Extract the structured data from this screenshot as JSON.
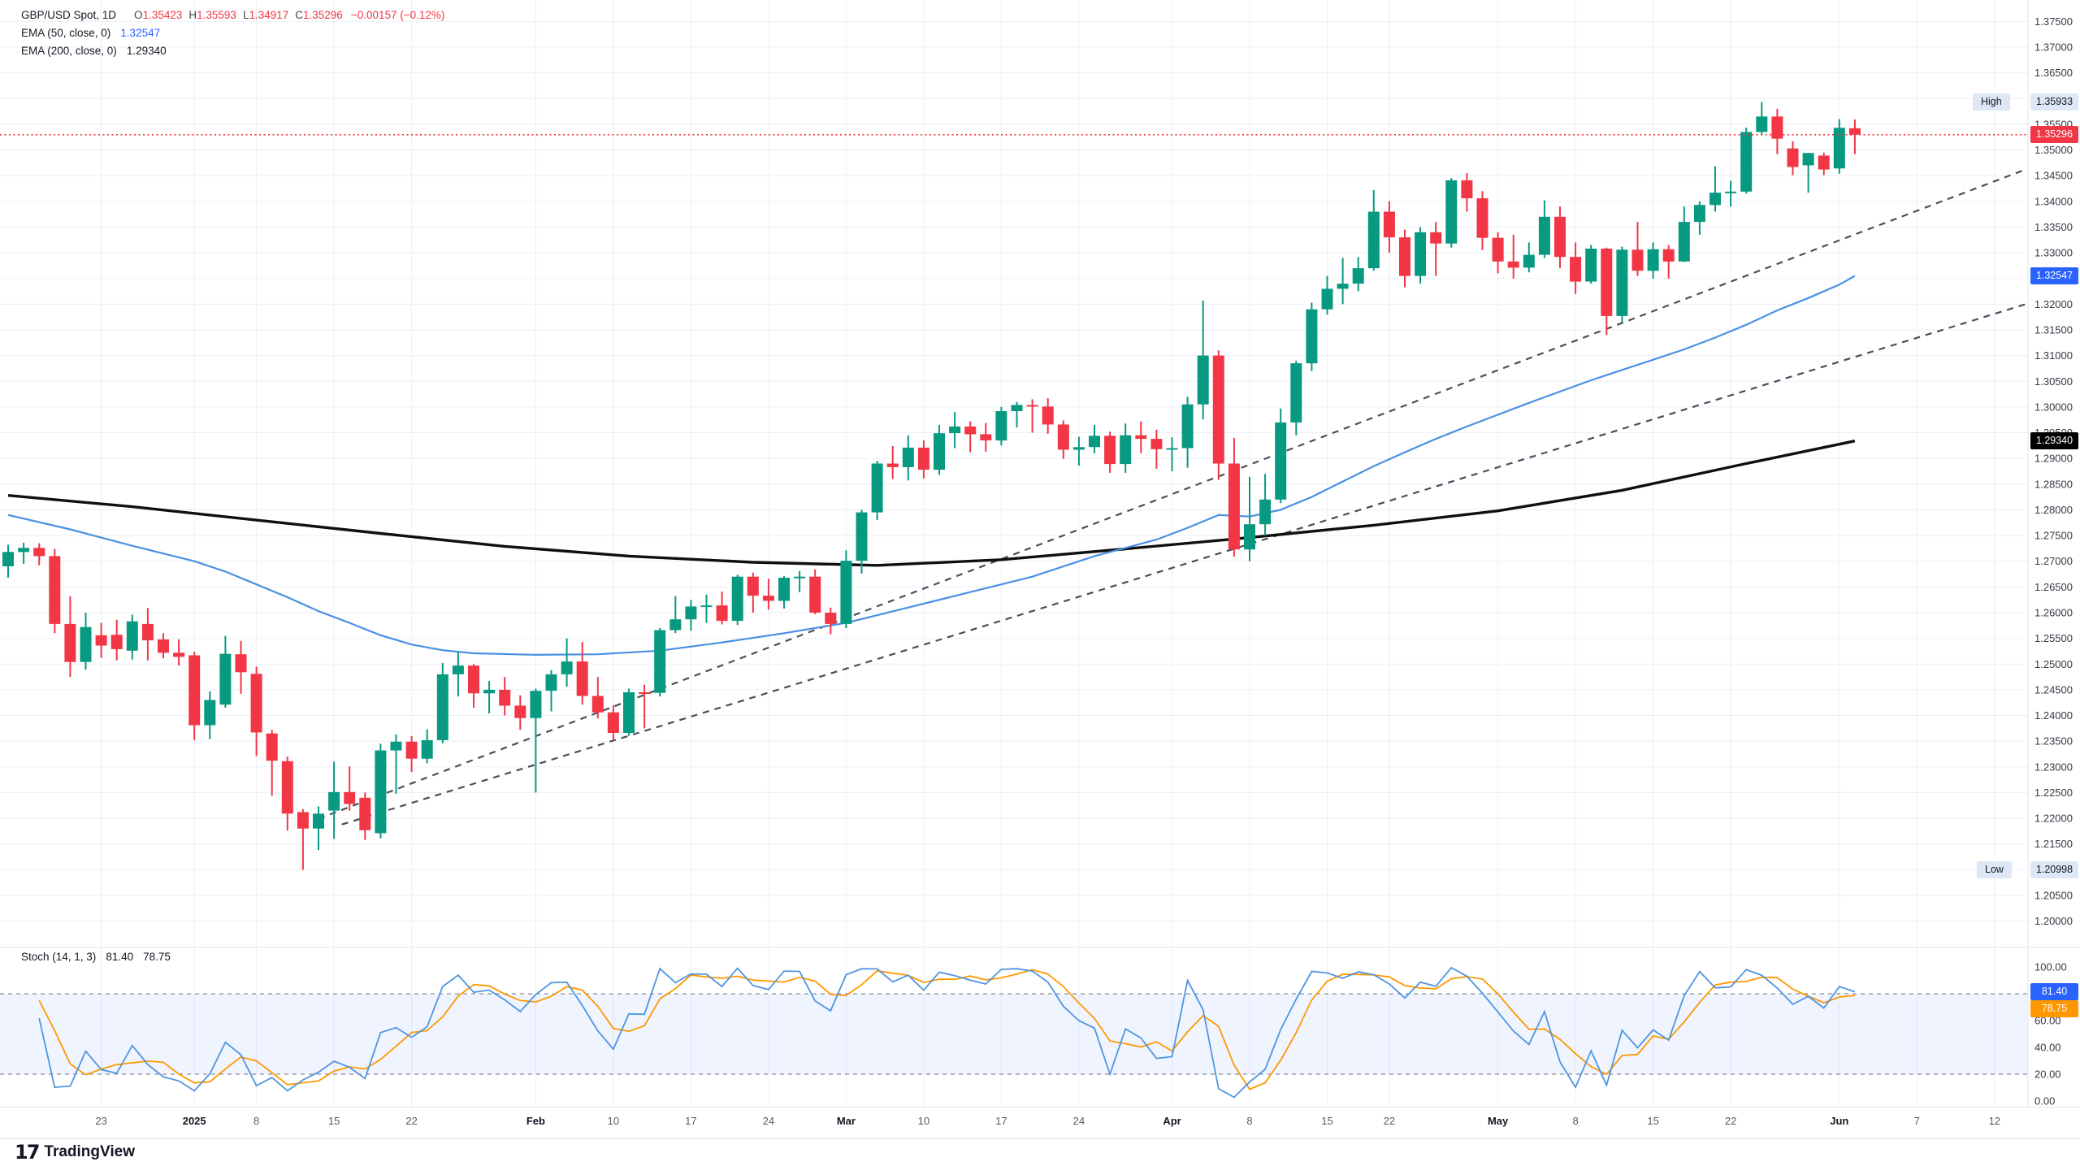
{
  "header": {
    "symbol": "GBP/USD Spot, 1D",
    "o_label": "O",
    "o": "1.35423",
    "h_label": "H",
    "h": "1.35593",
    "l_label": "L",
    "l": "1.34917",
    "c_label": "C",
    "c": "1.35296",
    "change": "−0.00157 (−0.12%)"
  },
  "ema50_row": {
    "label": "EMA (50, close, 0)",
    "value": "1.32547"
  },
  "ema200_row": {
    "label": "EMA (200, close, 0)",
    "value": "1.29340"
  },
  "stoch_row": {
    "label": "Stoch (14, 1, 3)",
    "k": "81.40",
    "d": "78.75"
  },
  "badges": {
    "high_label": "High",
    "high": "1.35933",
    "low_label": "Low",
    "low": "1.20998",
    "last": "1.35296",
    "ema50": "1.32547",
    "ema200": "1.29340",
    "stoch_k": "81.40",
    "stoch_d": "78.75"
  },
  "watermark": {
    "logo": "17",
    "brand": "TradingView"
  },
  "colors": {
    "up": "#089981",
    "down": "#f23645",
    "ema50_line": "#4a90e2",
    "ema200_line": "#101010",
    "stoch_k": "#4f95e0",
    "stoch_d": "#ff9800",
    "grid": "#eceff7",
    "divider": "#e0e3eb",
    "axis_text": "#363a45",
    "trendline": "#4a4e59",
    "last_price_line": "#f23645",
    "stoch_band": "#2962ff"
  },
  "chart_data": {
    "type": "candlestick",
    "title": "GBP/USD Spot, 1D",
    "last_price": 1.35296,
    "high_marker": 1.35933,
    "low_marker": 1.20998,
    "y_axis": {
      "min": 1.2,
      "max": 1.375,
      "step": 0.005
    },
    "stoch_axis": {
      "min": 0,
      "max": 100,
      "ticks": [
        100,
        60,
        40,
        20,
        0
      ],
      "band": [
        80,
        20
      ],
      "k_last": 81.4,
      "d_last": 78.75
    },
    "time_labels": [
      {
        "text": "23",
        "bar": 6
      },
      {
        "text": "2025",
        "bar": 12,
        "major": true
      },
      {
        "text": "8",
        "bar": 16
      },
      {
        "text": "15",
        "bar": 21
      },
      {
        "text": "22",
        "bar": 26
      },
      {
        "text": "Feb",
        "bar": 34,
        "major": true
      },
      {
        "text": "10",
        "bar": 39
      },
      {
        "text": "17",
        "bar": 44
      },
      {
        "text": "24",
        "bar": 49
      },
      {
        "text": "Mar",
        "bar": 54,
        "major": true
      },
      {
        "text": "10",
        "bar": 59
      },
      {
        "text": "17",
        "bar": 64
      },
      {
        "text": "24",
        "bar": 69
      },
      {
        "text": "Apr",
        "bar": 75,
        "major": true
      },
      {
        "text": "8",
        "bar": 80
      },
      {
        "text": "15",
        "bar": 85
      },
      {
        "text": "22",
        "bar": 89
      },
      {
        "text": "May",
        "bar": 96,
        "major": true
      },
      {
        "text": "8",
        "bar": 101
      },
      {
        "text": "15",
        "bar": 106
      },
      {
        "text": "22",
        "bar": 111
      },
      {
        "text": "Jun",
        "bar": 118,
        "major": true
      },
      {
        "text": "7",
        "bar": 123
      },
      {
        "text": "12",
        "bar": 128
      }
    ],
    "candles": [
      [
        1.269,
        1.2732,
        1.2668,
        1.2718
      ],
      [
        1.2718,
        1.2736,
        1.2695,
        1.2726
      ],
      [
        1.2726,
        1.2735,
        1.2692,
        1.271
      ],
      [
        1.271,
        1.2724,
        1.256,
        1.2578
      ],
      [
        1.2578,
        1.2632,
        1.2475,
        1.2504
      ],
      [
        1.2504,
        1.26,
        1.2489,
        1.2572
      ],
      [
        1.2556,
        1.258,
        1.2512,
        1.2536
      ],
      [
        1.2557,
        1.2586,
        1.2507,
        1.2529
      ],
      [
        1.2526,
        1.2596,
        1.2509,
        1.2583
      ],
      [
        1.2578,
        1.2609,
        1.2507,
        1.2546
      ],
      [
        1.2548,
        1.256,
        1.2511,
        1.2522
      ],
      [
        1.2522,
        1.2548,
        1.2497,
        1.2514
      ],
      [
        1.2517,
        1.2524,
        1.2352,
        1.2381
      ],
      [
        1.2381,
        1.2447,
        1.2354,
        1.243
      ],
      [
        1.2421,
        1.2555,
        1.2415,
        1.252
      ],
      [
        1.2519,
        1.2545,
        1.2442,
        1.2484
      ],
      [
        1.2481,
        1.2495,
        1.2321,
        1.2367
      ],
      [
        1.2365,
        1.2372,
        1.2244,
        1.2312
      ],
      [
        1.2311,
        1.232,
        1.2176,
        1.2209
      ],
      [
        1.2212,
        1.2218,
        1.20998,
        1.218
      ],
      [
        1.218,
        1.2223,
        1.2138,
        1.2209
      ],
      [
        1.2215,
        1.231,
        1.216,
        1.2251
      ],
      [
        1.2251,
        1.2301,
        1.2215,
        1.2228
      ],
      [
        1.224,
        1.225,
        1.2158,
        1.2177
      ],
      [
        1.2171,
        1.2345,
        1.2161,
        1.2332
      ],
      [
        1.2332,
        1.2363,
        1.2248,
        1.2349
      ],
      [
        1.2349,
        1.236,
        1.229,
        1.2316
      ],
      [
        1.2316,
        1.2373,
        1.2307,
        1.2352
      ],
      [
        1.2352,
        1.2502,
        1.2346,
        1.248
      ],
      [
        1.248,
        1.2523,
        1.2437,
        1.2497
      ],
      [
        1.2497,
        1.25,
        1.2415,
        1.2443
      ],
      [
        1.2443,
        1.2467,
        1.2404,
        1.245
      ],
      [
        1.245,
        1.2475,
        1.24,
        1.2419
      ],
      [
        1.2419,
        1.2439,
        1.2372,
        1.2395
      ],
      [
        1.2395,
        1.2452,
        1.225,
        1.2448
      ],
      [
        1.2448,
        1.2488,
        1.2408,
        1.248
      ],
      [
        1.248,
        1.255,
        1.2456,
        1.2505
      ],
      [
        1.2505,
        1.2543,
        1.2421,
        1.2438
      ],
      [
        1.2438,
        1.2475,
        1.2394,
        1.2406
      ],
      [
        1.2406,
        1.242,
        1.2353,
        1.2366
      ],
      [
        1.2366,
        1.2452,
        1.236,
        1.2445
      ],
      [
        1.2445,
        1.246,
        1.2375,
        1.2444
      ],
      [
        1.2444,
        1.257,
        1.2437,
        1.2566
      ],
      [
        1.2566,
        1.2632,
        1.256,
        1.2587
      ],
      [
        1.2587,
        1.2625,
        1.2565,
        1.2612
      ],
      [
        1.2612,
        1.2635,
        1.258,
        1.2614
      ],
      [
        1.2614,
        1.2641,
        1.2577,
        1.2584
      ],
      [
        1.2584,
        1.2674,
        1.2576,
        1.267
      ],
      [
        1.267,
        1.2678,
        1.26,
        1.2633
      ],
      [
        1.2633,
        1.2666,
        1.2606,
        1.2623
      ],
      [
        1.2623,
        1.2671,
        1.2608,
        1.2668
      ],
      [
        1.2668,
        1.2681,
        1.264,
        1.267
      ],
      [
        1.267,
        1.2684,
        1.2597,
        1.26
      ],
      [
        1.26,
        1.261,
        1.2558,
        1.2578
      ],
      [
        1.2578,
        1.2721,
        1.257,
        1.2701
      ],
      [
        1.2701,
        1.28,
        1.2676,
        1.2795
      ],
      [
        1.2795,
        1.2895,
        1.278,
        1.289
      ],
      [
        1.289,
        1.2924,
        1.286,
        1.2883
      ],
      [
        1.2883,
        1.2945,
        1.2857,
        1.2921
      ],
      [
        1.2921,
        1.2935,
        1.2861,
        1.2878
      ],
      [
        1.2878,
        1.2965,
        1.2868,
        1.2949
      ],
      [
        1.2949,
        1.299,
        1.292,
        1.2962
      ],
      [
        1.2962,
        1.2972,
        1.2912,
        1.2947
      ],
      [
        1.2947,
        1.2969,
        1.2913,
        1.2935
      ],
      [
        1.2935,
        1.3,
        1.2925,
        1.2992
      ],
      [
        1.2992,
        1.301,
        1.296,
        1.3004
      ],
      [
        1.3004,
        1.3015,
        1.295,
        1.3001
      ],
      [
        1.3001,
        1.3017,
        1.2948,
        1.2966
      ],
      [
        1.2966,
        1.2974,
        1.2899,
        1.2917
      ],
      [
        1.2917,
        1.2942,
        1.2886,
        1.2922
      ],
      [
        1.2922,
        1.2965,
        1.291,
        1.2944
      ],
      [
        1.2944,
        1.2952,
        1.2872,
        1.2889
      ],
      [
        1.2889,
        1.2968,
        1.2872,
        1.2945
      ],
      [
        1.2945,
        1.2972,
        1.291,
        1.2938
      ],
      [
        1.2938,
        1.2956,
        1.288,
        1.2918
      ],
      [
        1.2918,
        1.2941,
        1.2875,
        1.292
      ],
      [
        1.292,
        1.302,
        1.2882,
        1.3005
      ],
      [
        1.3005,
        1.3207,
        1.2976,
        1.31
      ],
      [
        1.31,
        1.311,
        1.2858,
        1.289
      ],
      [
        1.289,
        1.294,
        1.2709,
        1.2723
      ],
      [
        1.2723,
        1.2864,
        1.27,
        1.2772
      ],
      [
        1.2772,
        1.287,
        1.275,
        1.282
      ],
      [
        1.282,
        1.2997,
        1.2813,
        1.297
      ],
      [
        1.297,
        1.309,
        1.2945,
        1.3085
      ],
      [
        1.3085,
        1.3203,
        1.307,
        1.319
      ],
      [
        1.319,
        1.3255,
        1.318,
        1.323
      ],
      [
        1.323,
        1.329,
        1.32,
        1.324
      ],
      [
        1.324,
        1.3292,
        1.3225,
        1.327
      ],
      [
        1.327,
        1.3422,
        1.3265,
        1.338
      ],
      [
        1.338,
        1.34,
        1.33,
        1.333
      ],
      [
        1.333,
        1.3345,
        1.3233,
        1.3255
      ],
      [
        1.3255,
        1.335,
        1.324,
        1.334
      ],
      [
        1.334,
        1.336,
        1.3255,
        1.3318
      ],
      [
        1.3318,
        1.3445,
        1.331,
        1.3441
      ],
      [
        1.3441,
        1.3455,
        1.338,
        1.3406
      ],
      [
        1.3406,
        1.342,
        1.3305,
        1.3329
      ],
      [
        1.3329,
        1.334,
        1.326,
        1.3283
      ],
      [
        1.3283,
        1.3335,
        1.325,
        1.3271
      ],
      [
        1.3271,
        1.332,
        1.3262,
        1.3296
      ],
      [
        1.3296,
        1.3402,
        1.329,
        1.337
      ],
      [
        1.337,
        1.339,
        1.327,
        1.3292
      ],
      [
        1.3292,
        1.332,
        1.322,
        1.3244
      ],
      [
        1.3244,
        1.3315,
        1.324,
        1.3308
      ],
      [
        1.3308,
        1.331,
        1.314,
        1.3177
      ],
      [
        1.3177,
        1.3312,
        1.3165,
        1.3306
      ],
      [
        1.3306,
        1.336,
        1.3255,
        1.3265
      ],
      [
        1.3265,
        1.332,
        1.325,
        1.3307
      ],
      [
        1.3307,
        1.3315,
        1.325,
        1.3283
      ],
      [
        1.3283,
        1.339,
        1.3282,
        1.336
      ],
      [
        1.336,
        1.34,
        1.3335,
        1.3393
      ],
      [
        1.3393,
        1.3468,
        1.338,
        1.3417
      ],
      [
        1.3417,
        1.344,
        1.339,
        1.3419
      ],
      [
        1.3419,
        1.3543,
        1.3415,
        1.3535
      ],
      [
        1.3535,
        1.35933,
        1.353,
        1.3565
      ],
      [
        1.3565,
        1.358,
        1.3492,
        1.3522
      ],
      [
        1.3503,
        1.3517,
        1.3451,
        1.3467
      ],
      [
        1.347,
        1.3494,
        1.3417,
        1.3494
      ],
      [
        1.3489,
        1.3495,
        1.3451,
        1.3462
      ],
      [
        1.3464,
        1.356,
        1.3454,
        1.3543
      ],
      [
        1.35423,
        1.35593,
        1.34917,
        1.35296
      ]
    ],
    "ema50": [
      [
        0,
        1.279
      ],
      [
        4,
        1.2762
      ],
      [
        8,
        1.273
      ],
      [
        12,
        1.27
      ],
      [
        14,
        1.268
      ],
      [
        16,
        1.2655
      ],
      [
        18,
        1.263
      ],
      [
        20,
        1.2603
      ],
      [
        22,
        1.258
      ],
      [
        24,
        1.2556
      ],
      [
        26,
        1.2538
      ],
      [
        28,
        1.2527
      ],
      [
        30,
        1.2521
      ],
      [
        34,
        1.2518
      ],
      [
        38,
        1.2519
      ],
      [
        42,
        1.2526
      ],
      [
        46,
        1.2542
      ],
      [
        50,
        1.256
      ],
      [
        54,
        1.258
      ],
      [
        58,
        1.261
      ],
      [
        62,
        1.264
      ],
      [
        66,
        1.267
      ],
      [
        70,
        1.271
      ],
      [
        74,
        1.2742
      ],
      [
        76,
        1.2765
      ],
      [
        78,
        1.279
      ],
      [
        80,
        1.2787
      ],
      [
        82,
        1.28
      ],
      [
        84,
        1.2825
      ],
      [
        86,
        1.2855
      ],
      [
        88,
        1.2885
      ],
      [
        90,
        1.2912
      ],
      [
        92,
        1.2938
      ],
      [
        94,
        1.2962
      ],
      [
        96,
        1.2985
      ],
      [
        98,
        1.3008
      ],
      [
        100,
        1.303
      ],
      [
        102,
        1.3052
      ],
      [
        104,
        1.3072
      ],
      [
        106,
        1.3092
      ],
      [
        108,
        1.3112
      ],
      [
        110,
        1.3135
      ],
      [
        112,
        1.316
      ],
      [
        114,
        1.3188
      ],
      [
        116,
        1.3212
      ],
      [
        118,
        1.3238
      ],
      [
        119,
        1.3255
      ]
    ],
    "ema200": [
      [
        0,
        1.2828
      ],
      [
        8,
        1.2806
      ],
      [
        16,
        1.278
      ],
      [
        24,
        1.2754
      ],
      [
        32,
        1.2729
      ],
      [
        40,
        1.271
      ],
      [
        48,
        1.2698
      ],
      [
        56,
        1.2692
      ],
      [
        64,
        1.2703
      ],
      [
        72,
        1.2724
      ],
      [
        80,
        1.2746
      ],
      [
        88,
        1.277
      ],
      [
        96,
        1.2798
      ],
      [
        104,
        1.2838
      ],
      [
        112,
        1.289
      ],
      [
        119,
        1.2934
      ]
    ],
    "trendlines": [
      {
        "from": {
          "bar": 20,
          "price": 1.2199
        },
        "to": {
          "bar": 130,
          "price": 1.3462
        }
      },
      {
        "from": {
          "bar": 21.5,
          "price": 1.2188
        },
        "to": {
          "bar": 130,
          "price": 1.32
        }
      }
    ]
  }
}
